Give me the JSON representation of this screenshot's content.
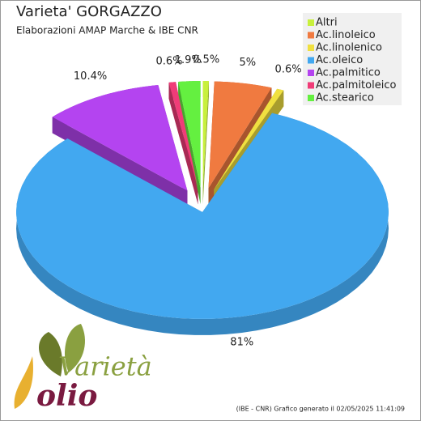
{
  "chart_data": {
    "type": "pie3d",
    "title": "Varieta' GORGAZZO",
    "subtitle": "Elaborazioni AMAP Marche & IBE CNR",
    "categories": [
      "Altri",
      "Ac.linoleico",
      "Ac.linolenico",
      "Ac.oleico",
      "Ac.palmitico",
      "Ac.palmitoleico",
      "Ac.stearico"
    ],
    "values": [
      0.5,
      5,
      0.6,
      81,
      10.4,
      0.6,
      1.9
    ],
    "value_labels": [
      "0.5%",
      "5%",
      "0.6%",
      "81%",
      "10.4%",
      "0.6%",
      "1.9%"
    ],
    "colors": [
      "#c8f03c",
      "#f07a40",
      "#f0e040",
      "#42a8f0",
      "#b444f0",
      "#f03c78",
      "#64f040"
    ],
    "legend": "top-right"
  },
  "footer": "(IBE - CNR) Grafico generato il 02/05/2025 11:41:09",
  "logo": {
    "word1": "Varietà",
    "word2": "olio"
  }
}
